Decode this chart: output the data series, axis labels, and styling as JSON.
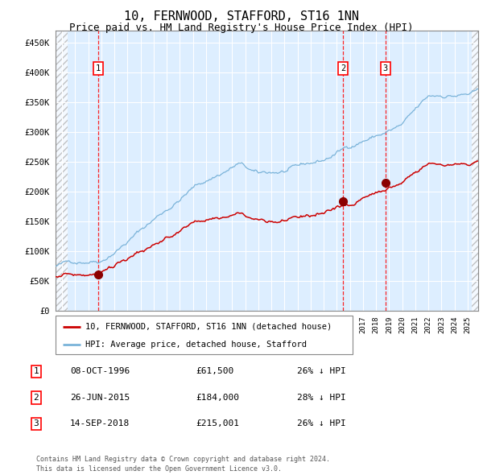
{
  "title": "10, FERNWOOD, STAFFORD, ST16 1NN",
  "subtitle": "Price paid vs. HM Land Registry's House Price Index (HPI)",
  "title_fontsize": 11,
  "subtitle_fontsize": 9,
  "hpi_color": "#7ab3d9",
  "price_color": "#cc0000",
  "plot_bg": "#ddeeff",
  "grid_color": "#ffffff",
  "ylim": [
    0,
    470000
  ],
  "yticks": [
    0,
    50000,
    100000,
    150000,
    200000,
    250000,
    300000,
    350000,
    400000,
    450000
  ],
  "xlim_start": 1993.5,
  "xlim_end": 2025.8,
  "sale_dates": [
    1996.77,
    2015.49,
    2018.71
  ],
  "sale_prices": [
    61500,
    184000,
    215001
  ],
  "sale_labels": [
    "1",
    "2",
    "3"
  ],
  "legend_price_label": "10, FERNWOOD, STAFFORD, ST16 1NN (detached house)",
  "legend_hpi_label": "HPI: Average price, detached house, Stafford",
  "table_rows": [
    [
      "1",
      "08-OCT-1996",
      "£61,500",
      "26% ↓ HPI"
    ],
    [
      "2",
      "26-JUN-2015",
      "£184,000",
      "28% ↓ HPI"
    ],
    [
      "3",
      "14-SEP-2018",
      "£215,001",
      "26% ↓ HPI"
    ]
  ],
  "footer": "Contains HM Land Registry data © Crown copyright and database right 2024.\nThis data is licensed under the Open Government Licence v3.0.",
  "font_family": "monospace"
}
